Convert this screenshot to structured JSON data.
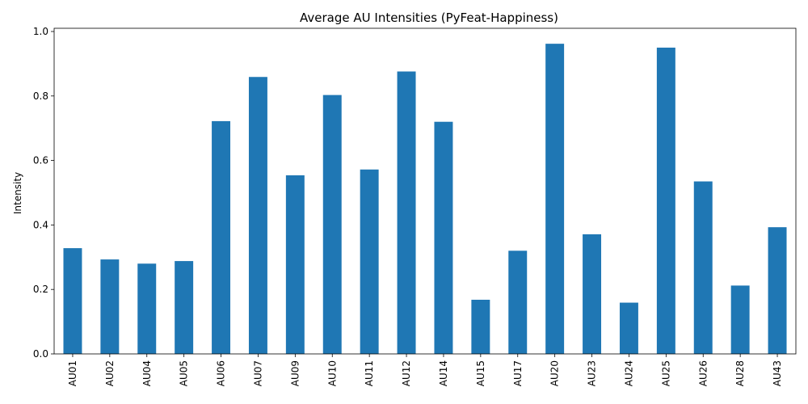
{
  "chart_data": {
    "type": "bar",
    "title": "Average AU Intensities (PyFeat-Happiness)",
    "xlabel": "",
    "ylabel": "Intensity",
    "categories": [
      "AU01",
      "AU02",
      "AU04",
      "AU05",
      "AU06",
      "AU07",
      "AU09",
      "AU10",
      "AU11",
      "AU12",
      "AU14",
      "AU15",
      "AU17",
      "AU20",
      "AU23",
      "AU24",
      "AU25",
      "AU26",
      "AU28",
      "AU43"
    ],
    "values": [
      0.328,
      0.293,
      0.28,
      0.288,
      0.722,
      0.859,
      0.554,
      0.803,
      0.572,
      0.876,
      0.72,
      0.168,
      0.32,
      0.962,
      0.371,
      0.159,
      0.95,
      0.535,
      0.212,
      0.393
    ],
    "ylim": [
      0,
      1.01
    ],
    "yticks": [
      "0.0",
      "0.2",
      "0.4",
      "0.6",
      "0.8",
      "1.0"
    ],
    "bar_color": "#1f77b4",
    "grid": false,
    "legend": "none"
  }
}
